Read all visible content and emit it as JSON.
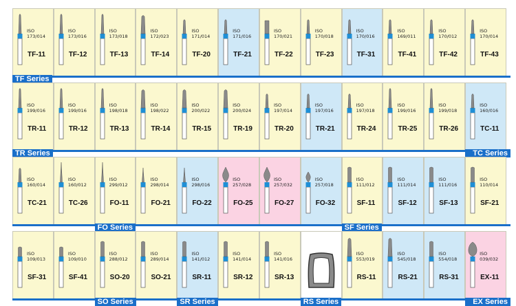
{
  "colors": {
    "yellow": "#fbf8cf",
    "blue": "#cfe8f7",
    "pink": "#fbd3e3",
    "band": "#1a6fc9",
    "shank": "#ffffff",
    "head": "#8a8a8a",
    "ring": "#1f8fd6"
  },
  "iso_label": "ISO",
  "rows": [
    {
      "cells": [
        {
          "code": "TF-11",
          "iso": "173/014",
          "bg": "yellow",
          "shape": "taper"
        },
        {
          "code": "TF-12",
          "iso": "173/016",
          "bg": "yellow",
          "shape": "taper"
        },
        {
          "code": "TF-13",
          "iso": "173/018",
          "bg": "yellow",
          "shape": "taper"
        },
        {
          "code": "TF-14",
          "iso": "172/023",
          "bg": "yellow",
          "shape": "taper-wide"
        },
        {
          "code": "TF-20",
          "iso": "171/014",
          "bg": "yellow",
          "shape": "taper-short"
        },
        {
          "code": "TF-21",
          "iso": "171/016",
          "bg": "blue",
          "shape": "taper-short"
        },
        {
          "code": "TF-22",
          "iso": "170/021",
          "bg": "yellow",
          "shape": "flat"
        },
        {
          "code": "TF-23",
          "iso": "170/018",
          "bg": "yellow",
          "shape": "taper-short"
        },
        {
          "code": "TF-31",
          "iso": "170/016",
          "bg": "blue",
          "shape": "taper-short"
        },
        {
          "code": "TF-41",
          "iso": "169/011",
          "bg": "yellow",
          "shape": "taper-short"
        },
        {
          "code": "TF-42",
          "iso": "170/012",
          "bg": "yellow",
          "shape": "taper-short"
        },
        {
          "code": "TF-43",
          "iso": "170/014",
          "bg": "yellow",
          "shape": "taper-short"
        }
      ],
      "labels": [
        "TF Series"
      ]
    },
    {
      "cells": [
        {
          "code": "TR-11",
          "iso": "199/016",
          "bg": "yellow",
          "shape": "taper"
        },
        {
          "code": "TR-12",
          "iso": "199/016",
          "bg": "yellow",
          "shape": "taper"
        },
        {
          "code": "TR-13",
          "iso": "198/018",
          "bg": "yellow",
          "shape": "taper"
        },
        {
          "code": "TR-14",
          "iso": "198/022",
          "bg": "yellow",
          "shape": "taper-wide"
        },
        {
          "code": "TR-15",
          "iso": "200/022",
          "bg": "yellow",
          "shape": "taper-wide"
        },
        {
          "code": "TR-19",
          "iso": "200/024",
          "bg": "yellow",
          "shape": "taper-wide"
        },
        {
          "code": "TR-20",
          "iso": "197/014",
          "bg": "yellow",
          "shape": "taper-short"
        },
        {
          "code": "TR-21",
          "iso": "197/016",
          "bg": "blue",
          "shape": "taper-short"
        },
        {
          "code": "TR-24",
          "iso": "197/018",
          "bg": "yellow",
          "shape": "taper-short"
        },
        {
          "code": "TR-25",
          "iso": "199/016",
          "bg": "yellow",
          "shape": "taper"
        },
        {
          "code": "TR-26",
          "iso": "199/018",
          "bg": "yellow",
          "shape": "taper"
        },
        {
          "code": "TC-11",
          "iso": "160/016",
          "bg": "blue",
          "shape": "taper-short"
        }
      ],
      "labels": [
        "TR Series",
        "TC Series"
      ]
    },
    {
      "cells": [
        {
          "code": "TC-21",
          "iso": "160/014",
          "bg": "yellow",
          "shape": "taper-short"
        },
        {
          "code": "TC-26",
          "iso": "160/012",
          "bg": "yellow",
          "shape": "needle"
        },
        {
          "code": "FO-11",
          "iso": "299/012",
          "bg": "yellow",
          "shape": "needle"
        },
        {
          "code": "FO-21",
          "iso": "298/014",
          "bg": "yellow",
          "shape": "needle-short"
        },
        {
          "code": "FO-22",
          "iso": "298/016",
          "bg": "blue",
          "shape": "needle-short"
        },
        {
          "code": "FO-25",
          "iso": "257/028",
          "bg": "pink",
          "shape": "flame"
        },
        {
          "code": "FO-27",
          "iso": "257/032",
          "bg": "pink",
          "shape": "flame"
        },
        {
          "code": "FO-32",
          "iso": "257/018",
          "bg": "blue",
          "shape": "flame-small"
        },
        {
          "code": "SF-11",
          "iso": "111/012",
          "bg": "yellow",
          "shape": "cyl"
        },
        {
          "code": "SF-12",
          "iso": "111/014",
          "bg": "blue",
          "shape": "cyl"
        },
        {
          "code": "SF-13",
          "iso": "111/016",
          "bg": "blue",
          "shape": "cyl"
        },
        {
          "code": "SF-21",
          "iso": "110/014",
          "bg": "yellow",
          "shape": "cyl"
        }
      ],
      "labels": [
        "FO Series",
        "SF Series"
      ]
    },
    {
      "cells": [
        {
          "code": "SF-31",
          "iso": "109/013",
          "bg": "yellow",
          "shape": "cyl-short"
        },
        {
          "code": "SF-41",
          "iso": "109/010",
          "bg": "yellow",
          "shape": "cyl-short"
        },
        {
          "code": "SO-20",
          "iso": "288/012",
          "bg": "yellow",
          "shape": "cyl"
        },
        {
          "code": "SO-21",
          "iso": "289/014",
          "bg": "yellow",
          "shape": "cyl"
        },
        {
          "code": "SR-11",
          "iso": "141/012",
          "bg": "blue",
          "shape": "cyl"
        },
        {
          "code": "SR-12",
          "iso": "141/014",
          "bg": "yellow",
          "shape": "cyl"
        },
        {
          "code": "SR-13",
          "iso": "141/016",
          "bg": "yellow",
          "shape": "cyl"
        },
        {
          "code": "RS-11",
          "iso": "553/019",
          "bg": "yellow",
          "shape": "taper-wide"
        },
        {
          "code": "RS-21",
          "iso": "545/018",
          "bg": "blue",
          "shape": "taper-wide"
        },
        {
          "code": "RS-31",
          "iso": "554/018",
          "bg": "blue",
          "shape": "cyl"
        },
        {
          "code": "EX-11",
          "iso": "039/032",
          "bg": "pink",
          "shape": "barrel"
        }
      ],
      "labels": [
        "SO Series",
        "SR Series",
        "RS Series",
        "EX Series"
      ]
    }
  ]
}
